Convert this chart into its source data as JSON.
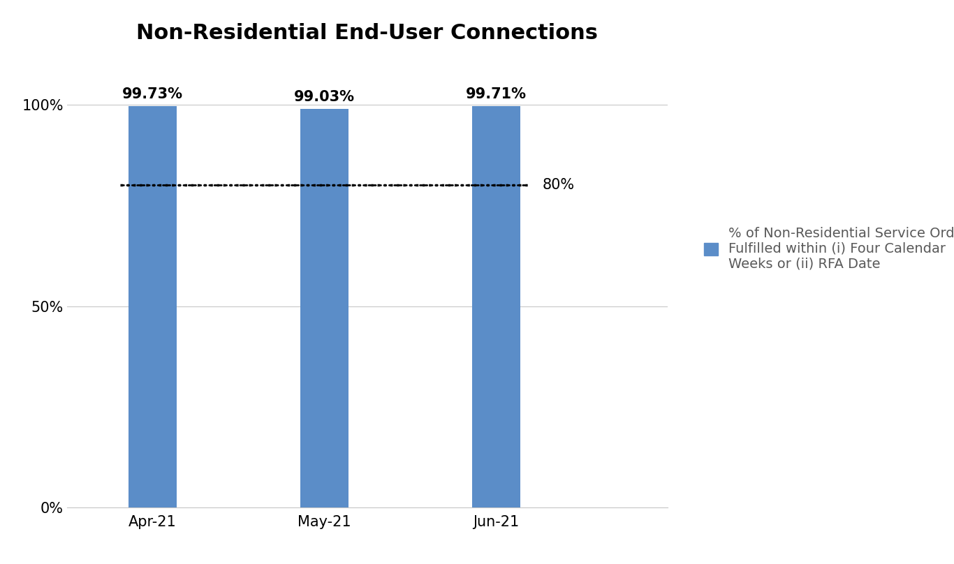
{
  "title": "Non-Residential End-User Connections",
  "categories": [
    "Apr-21",
    "May-21",
    "Jun-21"
  ],
  "values": [
    99.73,
    99.03,
    99.71
  ],
  "bar_labels": [
    "99.73%",
    "99.03%",
    "99.71%"
  ],
  "bar_color": "#5B8DC8",
  "ylim": [
    0,
    112
  ],
  "yticks": [
    0,
    50,
    100
  ],
  "ytick_labels": [
    "0%",
    "50%",
    "100%"
  ],
  "threshold": 80,
  "threshold_label": "80%",
  "legend_text": "% of Non-Residential Service Orders\nFulfilled within (i) Four Calendar\nWeeks or (ii) RFA Date",
  "legend_text_color": "#595959",
  "title_fontsize": 22,
  "label_fontsize": 14,
  "tick_fontsize": 15,
  "bar_label_fontsize": 15,
  "legend_fontsize": 14,
  "background_color": "#FFFFFF",
  "grid_color": "#C8C8C8"
}
